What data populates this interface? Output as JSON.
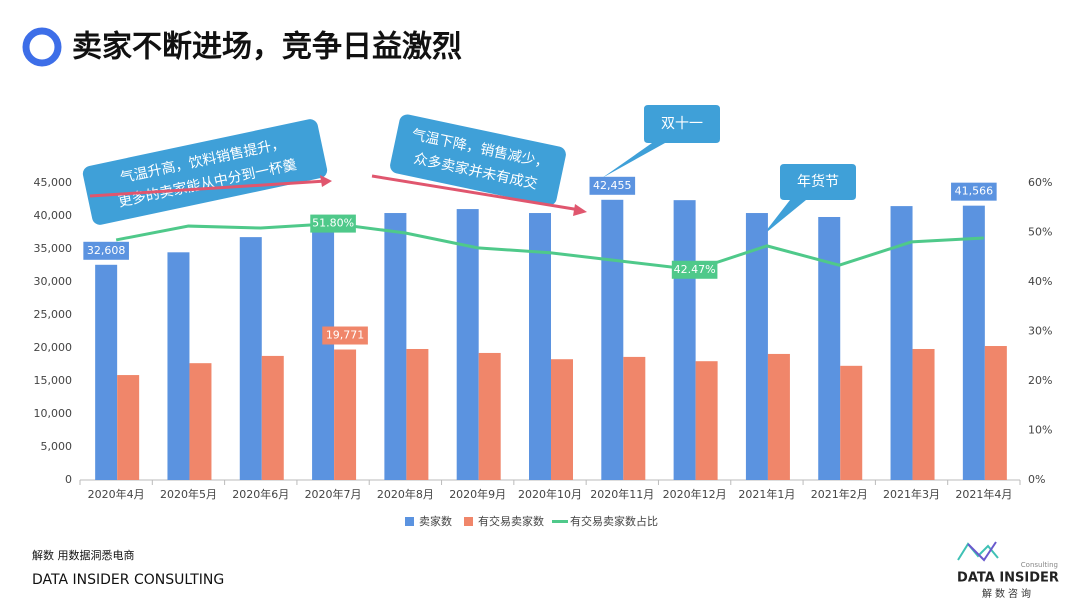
{
  "chart_data": {
    "type": "bar-line",
    "title": "卖家不断进场，竞争日益激烈",
    "categories": [
      "2020年4月",
      "2020年5月",
      "2020年6月",
      "2020年7月",
      "2020年8月",
      "2020年9月",
      "2020年10月",
      "2020年11月",
      "2020年12月",
      "2021年1月",
      "2021年2月",
      "2021年3月",
      "2021年4月"
    ],
    "series": [
      {
        "name": "卖家数",
        "type": "bar",
        "color": "#5b93e0",
        "values": [
          32608,
          34500,
          36800,
          38200,
          40450,
          41050,
          40450,
          42455,
          42400,
          40450,
          39850,
          41500,
          41566
        ],
        "value_labels": [
          "32,608",
          null,
          null,
          null,
          null,
          null,
          null,
          "42,455",
          null,
          null,
          null,
          null,
          "41,566"
        ]
      },
      {
        "name": "有交易卖家数",
        "type": "bar",
        "color": "#f0866a",
        "values": [
          15900,
          17700,
          18800,
          19771,
          19850,
          19250,
          18300,
          18650,
          18000,
          19100,
          17300,
          19850,
          20300
        ],
        "value_labels": [
          null,
          null,
          null,
          "19,771",
          null,
          null,
          null,
          null,
          null,
          null,
          null,
          null,
          null
        ]
      },
      {
        "name": "有交易卖家数占比",
        "type": "line",
        "axis": "y2",
        "color": "#4fc98a",
        "values": [
          48.5,
          51.3,
          50.9,
          51.8,
          49.9,
          46.9,
          45.9,
          44.2,
          42.47,
          47.3,
          43.4,
          48.1,
          48.9
        ],
        "value_labels": [
          null,
          null,
          null,
          "51.80%",
          null,
          null,
          null,
          null,
          "42.47%",
          null,
          null,
          null,
          null
        ]
      }
    ],
    "ylim": [
      0,
      45000
    ],
    "yticks": [
      0,
      {
        "value": 5000,
        "label": "5,000"
      },
      {
        "value": 10000,
        "label": "10,000"
      },
      {
        "value": 15000,
        "label": "15,000"
      },
      {
        "value": 20000,
        "label": "20,000"
      },
      {
        "value": 25000,
        "label": "25,000"
      },
      {
        "value": 30000,
        "label": "30,000"
      },
      {
        "value": 35000,
        "label": "35,000"
      },
      {
        "value": 40000,
        "label": "40,000"
      },
      {
        "value": 45000,
        "label": "45,000"
      }
    ],
    "y2lim": [
      0,
      60
    ],
    "y2ticks": [
      {
        "value": 0,
        "label": "0%"
      },
      {
        "value": 10,
        "label": "10%"
      },
      {
        "value": 20,
        "label": "20%"
      },
      {
        "value": 30,
        "label": "30%"
      },
      {
        "value": 40,
        "label": "40%"
      },
      {
        "value": 50,
        "label": "50%"
      },
      {
        "value": 60,
        "label": "60%"
      }
    ],
    "annotations": [
      {
        "lines": [
          "气温升高，饮料销售提升，",
          "更多的卖家能从中分到一杯羹"
        ]
      },
      {
        "lines": [
          "气温下降，销售减少，",
          "众多卖家并未有成交"
        ]
      },
      {
        "lines": [
          "双十一"
        ]
      },
      {
        "lines": [
          "年货节"
        ]
      }
    ]
  },
  "footer": {
    "slogan": "解数 用数据洞悉电商",
    "company": "DATA INSIDER CONSULTING",
    "logo": {
      "name": "DATA INSIDER",
      "tag": "Consulting",
      "sub": "解数咨询"
    }
  }
}
